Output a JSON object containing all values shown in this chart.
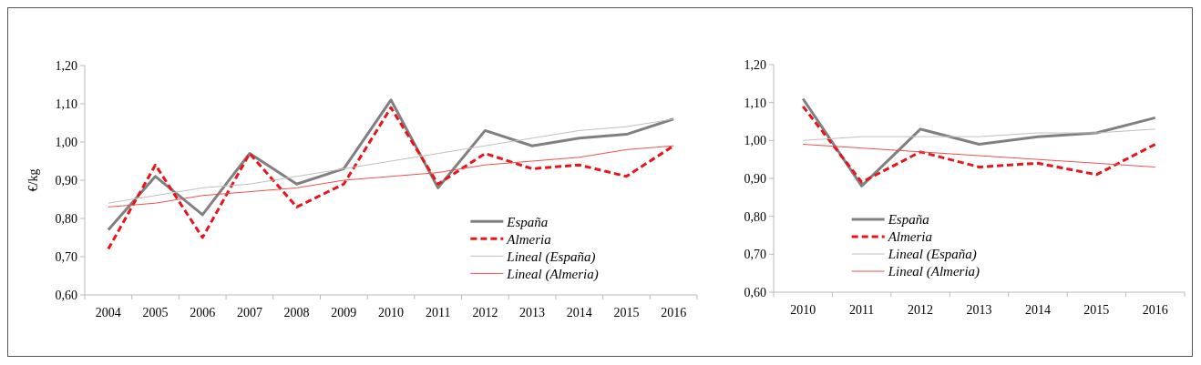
{
  "chart_data": [
    {
      "type": "line",
      "ylabel": "€/kg",
      "categories": [
        "2004",
        "2005",
        "2006",
        "2007",
        "2008",
        "2009",
        "2010",
        "2011",
        "2012",
        "2013",
        "2014",
        "2015",
        "2016"
      ],
      "series": [
        {
          "name": "España",
          "color": "#808080",
          "line_style": "solid",
          "values": [
            0.77,
            0.91,
            0.81,
            0.97,
            0.89,
            0.93,
            1.11,
            0.88,
            1.03,
            0.99,
            1.01,
            1.02,
            1.06
          ]
        },
        {
          "name": "Almeria",
          "color": "#e8141c",
          "line_style": "dashed",
          "values": [
            0.72,
            0.94,
            0.75,
            0.97,
            0.83,
            0.89,
            1.09,
            0.89,
            0.97,
            0.93,
            0.94,
            0.91,
            0.99
          ]
        },
        {
          "name": "Lineal (España)",
          "color": "#c0c0c0",
          "line_style": "solid",
          "values": [
            0.84,
            0.86,
            0.88,
            0.89,
            0.91,
            0.93,
            0.95,
            0.97,
            0.99,
            1.01,
            1.03,
            1.04,
            1.06
          ]
        },
        {
          "name": "Lineal (Almeria)",
          "color": "#f05050",
          "line_style": "solid",
          "values": [
            0.83,
            0.84,
            0.86,
            0.87,
            0.88,
            0.9,
            0.91,
            0.92,
            0.94,
            0.95,
            0.96,
            0.98,
            0.99
          ]
        }
      ],
      "ylim": [
        0.6,
        1.2
      ],
      "yticks": [
        {
          "value": 0.6,
          "label": "0,60"
        },
        {
          "value": 0.7,
          "label": "0,70"
        },
        {
          "value": 0.8,
          "label": "0,80"
        },
        {
          "value": 0.9,
          "label": "0,90"
        },
        {
          "value": 1.0,
          "label": "1,00"
        },
        {
          "value": 1.1,
          "label": "1,10"
        },
        {
          "value": 1.2,
          "label": "1,20"
        }
      ],
      "grid": false,
      "legend": "bottom right",
      "marker": "none"
    },
    {
      "type": "line",
      "categories": [
        "2010",
        "2011",
        "2012",
        "2013",
        "2014",
        "2015",
        "2016"
      ],
      "series": [
        {
          "name": "España",
          "color": "#808080",
          "line_style": "solid",
          "values": [
            1.11,
            0.88,
            1.03,
            0.99,
            1.01,
            1.02,
            1.06
          ]
        },
        {
          "name": "Almeria",
          "color": "#e8141c",
          "line_style": "dashed",
          "values": [
            1.09,
            0.89,
            0.97,
            0.93,
            0.94,
            0.91,
            0.99
          ]
        },
        {
          "name": "Lineal (España)",
          "color": "#c0c0c0",
          "line_style": "solid",
          "values": [
            1.0,
            1.01,
            1.01,
            1.01,
            1.02,
            1.02,
            1.03
          ]
        },
        {
          "name": "Lineal (Almeria)",
          "color": "#f05050",
          "line_style": "solid",
          "values": [
            0.99,
            0.98,
            0.97,
            0.96,
            0.95,
            0.94,
            0.93
          ]
        }
      ],
      "ylim": [
        0.6,
        1.2
      ],
      "yticks": [
        {
          "value": 0.6,
          "label": "0,60"
        },
        {
          "value": 0.7,
          "label": "0,70"
        },
        {
          "value": 0.8,
          "label": "0,80"
        },
        {
          "value": 0.9,
          "label": "0,90"
        },
        {
          "value": 1.0,
          "label": "1,00"
        },
        {
          "value": 1.1,
          "label": "1,10"
        },
        {
          "value": 1.2,
          "label": "1,20"
        }
      ],
      "grid": false,
      "legend": "bottom left",
      "marker": "none"
    }
  ]
}
